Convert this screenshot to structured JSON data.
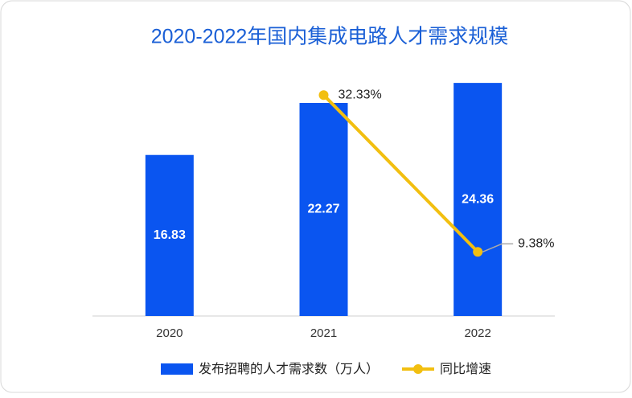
{
  "chart_data": {
    "type": "bar",
    "title": "2020-2022年国内集成电路人才需求规模",
    "categories": [
      "2020",
      "2021",
      "2022"
    ],
    "series": [
      {
        "name": "发布招聘的人才需求数（万人）",
        "type": "bar",
        "color": "#0a55f0",
        "values": [
          16.83,
          22.27,
          24.36
        ]
      },
      {
        "name": "同比增速",
        "type": "line",
        "axis": "y2",
        "color": "#f2bf10",
        "values": [
          null,
          32.33,
          9.38
        ],
        "value_labels": [
          null,
          "32.33%",
          "9.38%"
        ]
      }
    ],
    "ylim": [
      0,
      30
    ],
    "y2lim": [
      0,
      42
    ],
    "legend": "bottom"
  }
}
